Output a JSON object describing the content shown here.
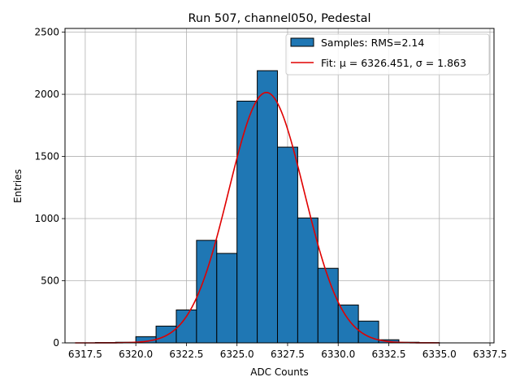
{
  "chart_data": {
    "type": "bar",
    "title": "Run 507, channel050, Pedestal",
    "xlabel": "ADC Counts",
    "ylabel": "Entries",
    "xlim": [
      6316.5,
      6337.7
    ],
    "ylim": [
      0,
      2530
    ],
    "xticks": [
      6317.5,
      6320.0,
      6322.5,
      6325.0,
      6327.5,
      6330.0,
      6332.5,
      6335.0,
      6337.5
    ],
    "xtick_labels": [
      "6317.5",
      "6320.0",
      "6322.5",
      "6325.0",
      "6327.5",
      "6330.0",
      "6332.5",
      "6335.0",
      "6337.5"
    ],
    "yticks": [
      0,
      500,
      1000,
      1500,
      2000,
      2500
    ],
    "ytick_labels": [
      "0",
      "500",
      "1000",
      "1500",
      "2000",
      "2500"
    ],
    "grid": true,
    "legend_position": "top-right",
    "histogram": {
      "name": "Samples: RMS=2.14",
      "color": "#1f77b4",
      "edgecolor": "#000000",
      "bins": [
        {
          "x0": 6318,
          "x1": 6319,
          "value": 3
        },
        {
          "x0": 6319,
          "x1": 6320,
          "value": 5
        },
        {
          "x0": 6320,
          "x1": 6321,
          "value": 50
        },
        {
          "x0": 6321,
          "x1": 6322,
          "value": 135
        },
        {
          "x0": 6322,
          "x1": 6323,
          "value": 265
        },
        {
          "x0": 6323,
          "x1": 6324,
          "value": 825
        },
        {
          "x0": 6324,
          "x1": 6325,
          "value": 720
        },
        {
          "x0": 6325,
          "x1": 6326,
          "value": 1945
        },
        {
          "x0": 6326,
          "x1": 6327,
          "value": 2190
        },
        {
          "x0": 6327,
          "x1": 6328,
          "value": 1575
        },
        {
          "x0": 6328,
          "x1": 6329,
          "value": 1005
        },
        {
          "x0": 6329,
          "x1": 6330,
          "value": 600
        },
        {
          "x0": 6330,
          "x1": 6331,
          "value": 305
        },
        {
          "x0": 6331,
          "x1": 6332,
          "value": 175
        },
        {
          "x0": 6332,
          "x1": 6333,
          "value": 25
        },
        {
          "x0": 6333,
          "x1": 6334,
          "value": 5
        },
        {
          "x0": 6334,
          "x1": 6335,
          "value": 2
        }
      ]
    },
    "fit": {
      "name": "Fit: μ = 6326.451, σ = 1.863",
      "color": "#e00000",
      "mu": 6326.451,
      "sigma": 1.863,
      "amplitude": 2015,
      "x_range": [
        6317.0,
        6335.0
      ]
    }
  }
}
